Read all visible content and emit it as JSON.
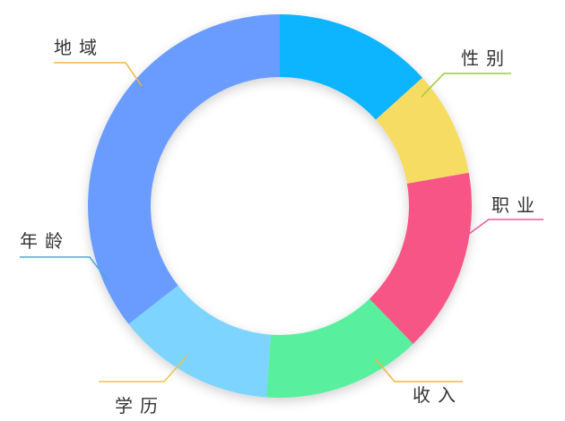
{
  "chart_data": {
    "type": "pie",
    "categories": [
      "性别",
      "职业",
      "收入",
      "学历",
      "年龄",
      "地域"
    ],
    "values": [
      12,
      8,
      14,
      12,
      12,
      32
    ],
    "colors": [
      "#0bb4ff",
      "#f7dc63",
      "#f85487",
      "#59ef9e",
      "#7bd4ff",
      "#6a9cff"
    ],
    "leader_colors": [
      "#9acd32",
      "#e85aa0",
      "#f2b53a",
      "#f2c14a",
      "#4aa8d6",
      "#f2b53a"
    ]
  }
}
